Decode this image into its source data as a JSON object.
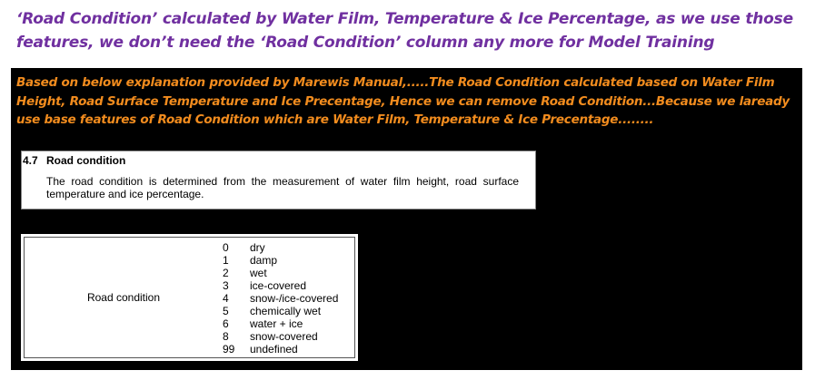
{
  "headline": "‘Road Condition’ calculated by Water Film, Temperature & Ice Percentage, as we use those features, we don’t need the ‘Road Condition’ column any more for Model Training",
  "note": "Based on below explanation provided by Marewis Manual,.....The Road Condition calculated based on Water Film Height, Road Surface Temperature and Ice Precentage, Hence we can remove Road Condition...Because we laready use base features of Road Condition which are Water Film, Temperature & Ice Precentage........",
  "manual_section": {
    "number": "4.7",
    "title": "Road condition",
    "body": "The road condition is determined from the measurement of water film height, road surface temperature and ice percentage."
  },
  "code_table": {
    "parameter": "Road condition",
    "codes": [
      {
        "code": "0",
        "label": "dry"
      },
      {
        "code": "1",
        "label": "damp"
      },
      {
        "code": "2",
        "label": "wet"
      },
      {
        "code": "3",
        "label": "ice-covered"
      },
      {
        "code": "4",
        "label": "snow-/ice-covered"
      },
      {
        "code": "5",
        "label": "chemically wet"
      },
      {
        "code": "6",
        "label": "water + ice"
      },
      {
        "code": "8",
        "label": "snow-covered"
      },
      {
        "code": "99",
        "label": "undefined"
      }
    ]
  },
  "colors": {
    "headline": "#7030a0",
    "note": "#f28c1e",
    "panel_background": "#000000"
  }
}
